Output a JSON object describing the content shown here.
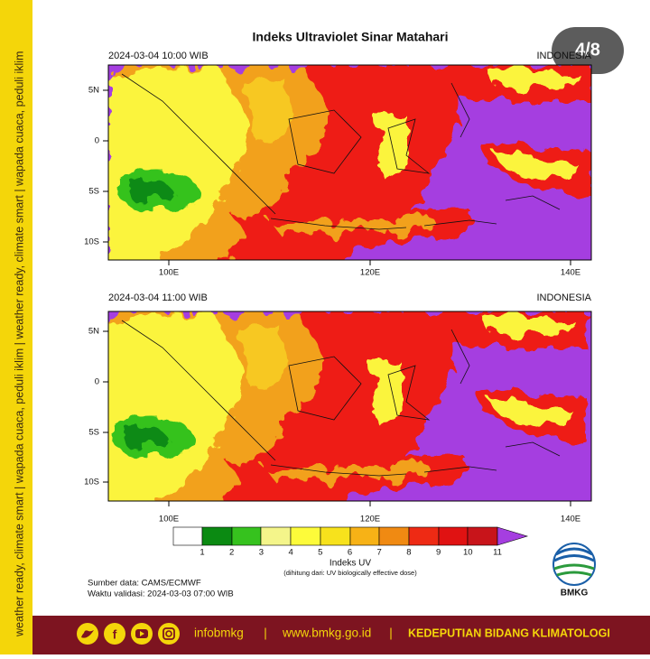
{
  "badge": "4/8",
  "side_text": "weather ready, climate smart  |  wapada cuaca, peduli iklim  |  weather ready, climate smart  |  wapada cuaca, peduli iklim",
  "title": "Indeks Ultraviolet Sinar Matahari",
  "panels": [
    {
      "time": "2024-03-04  10:00 WIB",
      "region": "INDONESIA",
      "lat_labels": [
        "5N",
        "0",
        "5S",
        "10S"
      ],
      "lon_labels": [
        "100E",
        "120E",
        "140E"
      ]
    },
    {
      "time": "2024-03-04  11:00 WIB",
      "region": "INDONESIA",
      "lat_labels": [
        "5N",
        "0",
        "5S",
        "10S"
      ],
      "lon_labels": [
        "100E",
        "120E",
        "140E"
      ]
    }
  ],
  "colorbar": {
    "labels": [
      "1",
      "2",
      "3",
      "4",
      "5",
      "6",
      "7",
      "8",
      "9",
      "10",
      "11"
    ],
    "title": "Indeks UV",
    "note": "(dihitung dari: UV biologically effective dose)"
  },
  "source": "Sumber data: CAMS/ECMWF",
  "validity": "Waktu validasi: 2024-03-03 07:00 WIB",
  "logo_text": "BMKG",
  "footer": {
    "social": "infobmkg",
    "separator": "|",
    "website": "www.bmkg.go.id",
    "department": "KEDEPUTIAN BIDANG KLIMATOLOGI"
  }
}
